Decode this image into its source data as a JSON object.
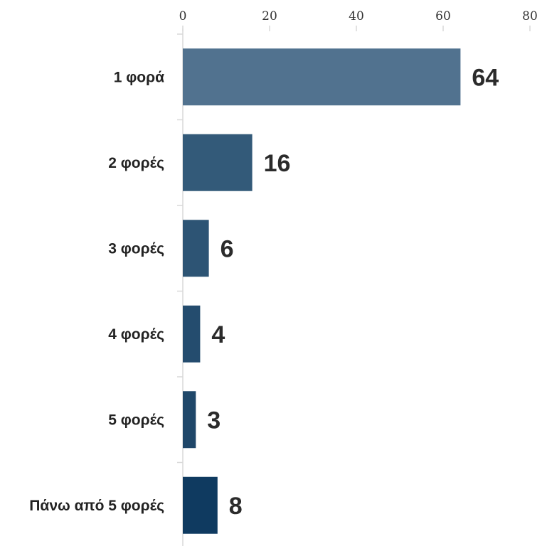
{
  "chart_data": {
    "type": "bar",
    "orientation": "horizontal",
    "categories": [
      "1 φορά",
      "2 φορές",
      "3 φορές",
      "4 φορές",
      "5 φορές",
      "Πάνω από 5 φορές"
    ],
    "values": [
      64,
      16,
      6,
      4,
      3,
      8
    ],
    "data_labels": [
      "64",
      "16",
      "6",
      "4",
      "3",
      "8"
    ],
    "x_ticks": [
      "0",
      "20",
      "40",
      "60",
      "80"
    ],
    "xlim": [
      0,
      80
    ],
    "x_axis_position": "top",
    "grid": false,
    "legend": "none",
    "title": "",
    "xlabel": "",
    "ylabel": "",
    "bar_colors": [
      "#51728f",
      "#335a79",
      "#2d5474",
      "#244c6e",
      "#1f4769",
      "#0f3a60"
    ],
    "axis_color": "#d9d9d9"
  }
}
